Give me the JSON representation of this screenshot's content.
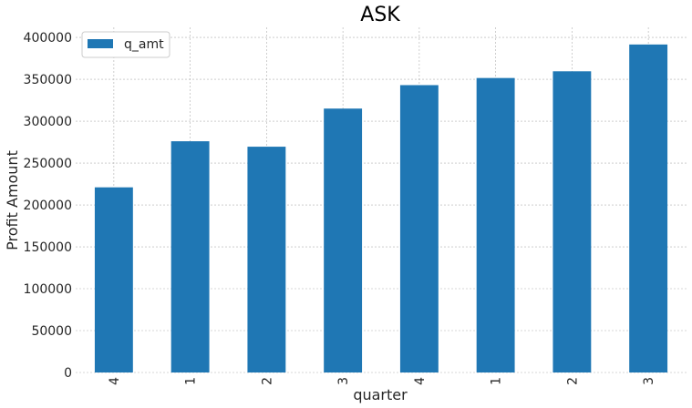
{
  "chart_data": {
    "type": "bar",
    "title": "ASK",
    "xlabel": "quarter",
    "ylabel": "Profit Amount",
    "categories": [
      "4",
      "1",
      "2",
      "3",
      "4",
      "1",
      "2",
      "3"
    ],
    "series": [
      {
        "name": "q_amt",
        "values": [
          221000,
          276000,
          269500,
          315000,
          343000,
          351500,
          359500,
          391500
        ],
        "color": "#1f77b4"
      }
    ],
    "ylim": [
      0,
      412000
    ],
    "yticks": [
      "0",
      "50000",
      "100000",
      "150000",
      "200000",
      "250000",
      "300000",
      "350000",
      "400000"
    ],
    "grid": true,
    "legend_position": "top-left"
  }
}
